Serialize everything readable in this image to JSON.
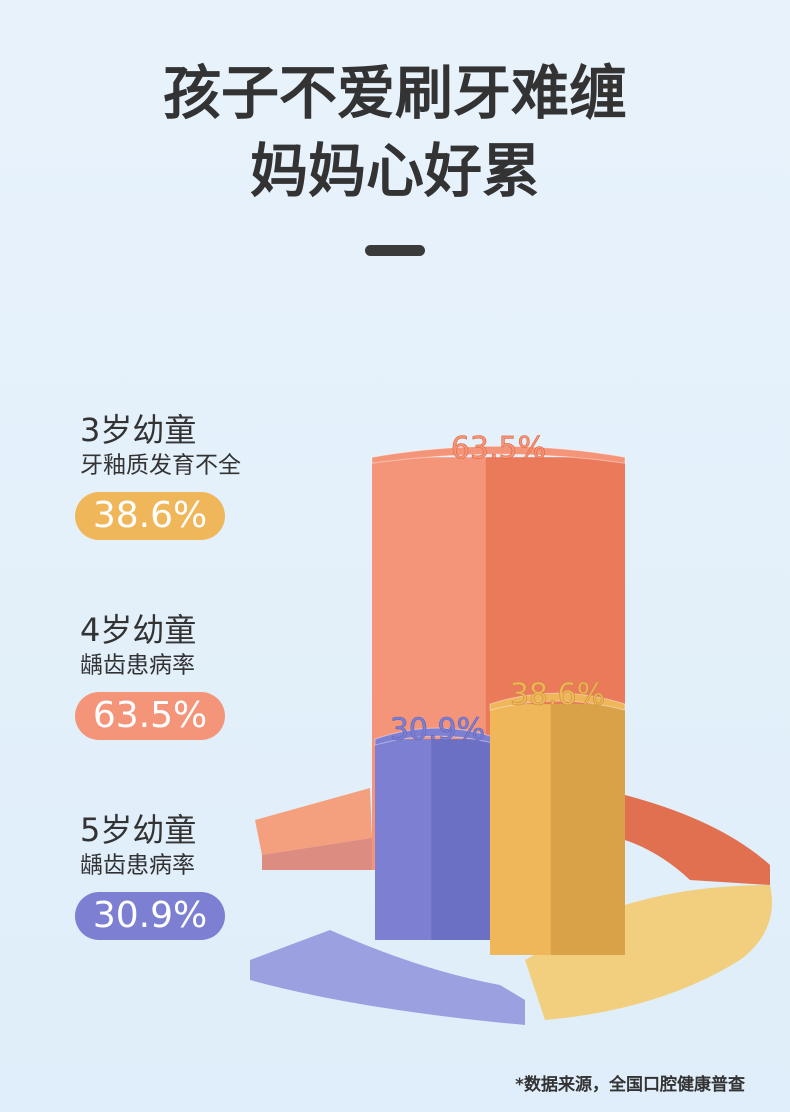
{
  "chart_data": {
    "type": "bar",
    "title": "孩子不爱刷牙难缠",
    "subtitle": "妈妈心好累",
    "categories": [
      "3岁幼童",
      "4岁幼童",
      "5岁幼童"
    ],
    "descriptions": [
      "牙釉质发育不全",
      "龋齿患病率",
      "龋齿患病率"
    ],
    "values": [
      38.6,
      63.5,
      30.9
    ],
    "value_labels": [
      "38.6%",
      "63.5%",
      "30.9%"
    ],
    "colors": [
      "#f0b65a",
      "#f4957a",
      "#7d80d2"
    ],
    "source": "*数据来源，全国口腔健康普查"
  }
}
